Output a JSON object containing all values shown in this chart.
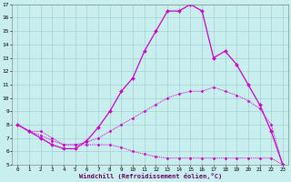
{
  "xlabel": "Windchill (Refroidissement éolien,°C)",
  "bg_color": "#c8eeee",
  "line_color": "#cc00cc",
  "xlim": [
    -0.5,
    23.5
  ],
  "ylim": [
    5,
    17
  ],
  "yticks": [
    5,
    6,
    7,
    8,
    9,
    10,
    11,
    12,
    13,
    14,
    15,
    16,
    17
  ],
  "xticks": [
    0,
    1,
    2,
    3,
    4,
    5,
    6,
    7,
    8,
    9,
    10,
    11,
    12,
    13,
    14,
    15,
    16,
    17,
    18,
    19,
    20,
    21,
    22,
    23
  ],
  "series1_x": [
    0,
    1,
    2,
    3,
    4,
    5,
    6,
    7,
    8,
    9,
    10,
    11,
    12,
    13,
    14,
    15,
    16,
    17,
    18,
    19,
    20,
    21,
    22,
    23
  ],
  "series1_y": [
    8.0,
    7.5,
    7.0,
    6.5,
    6.2,
    6.2,
    6.8,
    7.8,
    9.0,
    10.5,
    11.5,
    13.5,
    15.0,
    16.5,
    16.5,
    17.0,
    16.5,
    13.0,
    13.5,
    12.5,
    11.0,
    9.5,
    7.5,
    5.0
  ],
  "series2_x": [
    0,
    1,
    2,
    3,
    4,
    5,
    6,
    7,
    8,
    9,
    10,
    11,
    12,
    13,
    14,
    15,
    16,
    17,
    18,
    19,
    20,
    21,
    22,
    23
  ],
  "series2_y": [
    8.0,
    7.5,
    7.2,
    6.8,
    6.5,
    6.5,
    6.7,
    7.0,
    7.5,
    8.0,
    8.5,
    9.0,
    9.5,
    10.0,
    10.3,
    10.5,
    10.5,
    10.8,
    10.5,
    10.2,
    9.8,
    9.2,
    8.0,
    5.0
  ],
  "series3_x": [
    0,
    1,
    2,
    3,
    4,
    5,
    6,
    7,
    8,
    9,
    10,
    11,
    12,
    13,
    14,
    15,
    16,
    17,
    18,
    19,
    20,
    21,
    22,
    23
  ],
  "series3_y": [
    8.0,
    7.5,
    7.5,
    7.0,
    6.5,
    6.5,
    6.5,
    6.5,
    6.5,
    6.3,
    6.0,
    5.8,
    5.6,
    5.5,
    5.5,
    5.5,
    5.5,
    5.5,
    5.5,
    5.5,
    5.5,
    5.5,
    5.5,
    5.0
  ]
}
